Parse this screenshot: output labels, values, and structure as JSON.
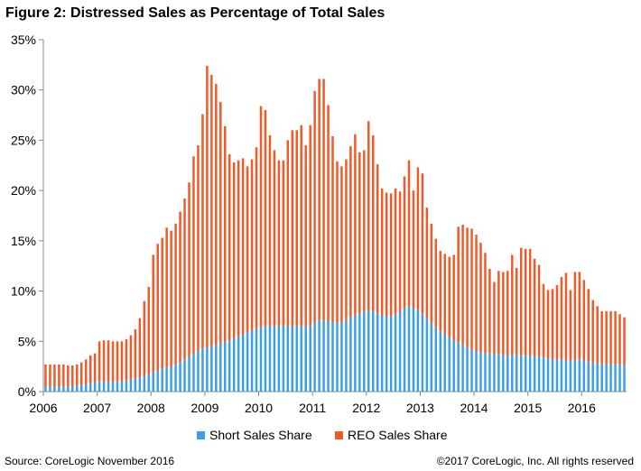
{
  "title": "Figure 2: Distressed Sales as Percentage of Total Sales",
  "source": "Source: CoreLogic November  2016",
  "copyright": "©2017 CoreLogic, Inc. All rights reserved",
  "colors": {
    "short_sales": "#3a9ee8",
    "reo_sales": "#f05a28"
  },
  "chart_data": {
    "type": "bar",
    "stacked": true,
    "x_start": "2006-01",
    "frequency": "monthly",
    "x_ticks": [
      "2006",
      "2007",
      "2008",
      "2009",
      "2010",
      "2011",
      "2012",
      "2013",
      "2014",
      "2015",
      "2016"
    ],
    "y_ticks": [
      "0%",
      "5%",
      "10%",
      "15%",
      "20%",
      "25%",
      "30%",
      "35%"
    ],
    "ylim": [
      0,
      35
    ],
    "grid": false,
    "legend_position": "bottom",
    "series": [
      {
        "name": "Short Sales Share",
        "color": "#3a9ee8",
        "values": [
          0.5,
          0.5,
          0.5,
          0.5,
          0.5,
          0.5,
          0.5,
          0.6,
          0.6,
          0.7,
          0.8,
          0.9,
          1.0,
          1.0,
          1.0,
          1.0,
          1.0,
          1.0,
          1.1,
          1.2,
          1.3,
          1.4,
          1.5,
          1.7,
          1.9,
          2.1,
          2.3,
          2.4,
          2.5,
          2.7,
          2.9,
          3.2,
          3.5,
          3.8,
          4.1,
          4.3,
          4.4,
          4.5,
          4.6,
          4.8,
          4.9,
          5.1,
          5.3,
          5.5,
          5.7,
          5.9,
          6.1,
          6.3,
          6.4,
          6.5,
          6.5,
          6.5,
          6.5,
          6.5,
          6.5,
          6.5,
          6.5,
          6.5,
          6.5,
          6.5,
          6.9,
          7.1,
          7.1,
          7.0,
          6.9,
          6.9,
          6.9,
          7.1,
          7.4,
          7.6,
          7.8,
          8.0,
          8.1,
          8.0,
          7.8,
          7.6,
          7.5,
          7.5,
          7.6,
          7.9,
          8.3,
          8.5,
          8.3,
          8.1,
          7.7,
          7.3,
          6.8,
          6.4,
          6.0,
          5.7,
          5.4,
          5.1,
          4.9,
          4.6,
          4.4,
          4.2,
          4.0,
          3.9,
          3.8,
          3.8,
          3.7,
          3.7,
          3.6,
          3.6,
          3.6,
          3.6,
          3.6,
          3.6,
          3.6,
          3.5,
          3.5,
          3.4,
          3.3,
          3.2,
          3.2,
          3.2,
          3.1,
          3.1,
          3.1,
          3.2,
          3.1,
          3.0,
          2.9,
          2.8,
          2.8,
          2.7,
          2.7,
          2.7,
          2.7,
          2.6
        ]
      },
      {
        "name": "REO Sales Share",
        "color": "#f05a28",
        "values": [
          2.2,
          2.2,
          2.2,
          2.2,
          2.2,
          2.1,
          2.1,
          2.1,
          2.3,
          2.5,
          2.8,
          2.9,
          4.0,
          4.1,
          4.1,
          4.0,
          4.0,
          4.0,
          4.1,
          4.4,
          4.9,
          5.9,
          7.5,
          8.7,
          11.7,
          12.6,
          13.0,
          13.9,
          13.5,
          14.0,
          15.0,
          16.0,
          17.3,
          19.6,
          20.4,
          23.3,
          28.0,
          27.0,
          26.0,
          24.0,
          21.5,
          18.5,
          17.5,
          17.5,
          17.5,
          16.5,
          17.0,
          18.0,
          22.0,
          21.5,
          19.0,
          17.5,
          16.5,
          16.5,
          18.5,
          19.5,
          19.5,
          20.0,
          18.0,
          20.0,
          23.0,
          24.0,
          24.0,
          21.5,
          18.5,
          16.0,
          15.5,
          16.0,
          17.0,
          18.0,
          16.0,
          16.0,
          18.8,
          17.5,
          14.8,
          12.6,
          12.3,
          12.2,
          12.6,
          12.0,
          13.1,
          14.5,
          11.7,
          14.2,
          14.0,
          11.0,
          9.9,
          8.8,
          8.0,
          8.0,
          8.0,
          8.5,
          11.5,
          12.0,
          11.9,
          12.0,
          11.6,
          10.9,
          10.0,
          8.4,
          7.2,
          8.3,
          8.3,
          8.4,
          10.0,
          8.7,
          10.7,
          10.6,
          10.6,
          9.7,
          9.1,
          7.3,
          6.8,
          7.0,
          7.4,
          8.2,
          8.7,
          7.0,
          8.8,
          8.7,
          8.0,
          7.2,
          6.2,
          5.7,
          5.2,
          5.3,
          5.3,
          5.3,
          5.0,
          4.8
        ]
      }
    ]
  }
}
